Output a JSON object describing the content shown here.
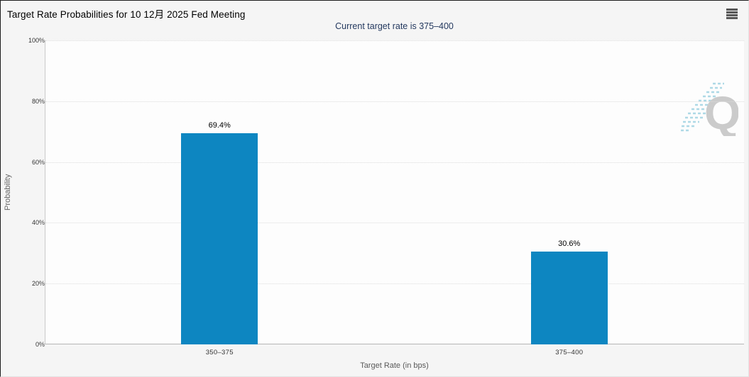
{
  "header": {
    "title": "Target Rate Probabilities for 10 12月 2025 Fed Meeting",
    "subtitle": "Current target rate is 375–400",
    "menu_icon": "hamburger-icon"
  },
  "chart_data": {
    "type": "bar",
    "title": "Target Rate Probabilities for 10 12月 2025 Fed Meeting",
    "subtitle": "Current target rate is 375–400",
    "categories": [
      "350–375",
      "375–400"
    ],
    "values": [
      69.4,
      30.6
    ],
    "data_labels": [
      "69.4%",
      "30.6%"
    ],
    "xlabel": "Target Rate (in bps)",
    "ylabel": "Probability",
    "ylim": [
      0,
      100
    ],
    "ytick_step": 20,
    "ytick_labels": [
      "0%",
      "20%",
      "40%",
      "60%",
      "80%",
      "100%"
    ],
    "grid": "dotted-horizontal",
    "legend": "none",
    "watermark_letter": "Q"
  },
  "colors": {
    "bar": "#0d86c1",
    "subtitle_text": "#24395f",
    "data_label": "#000000",
    "watermark_gray": "#cbcbcb",
    "watermark_teal": "#aed9e6",
    "grid": "#dcdcdc",
    "axis": "#b5b5b5"
  }
}
